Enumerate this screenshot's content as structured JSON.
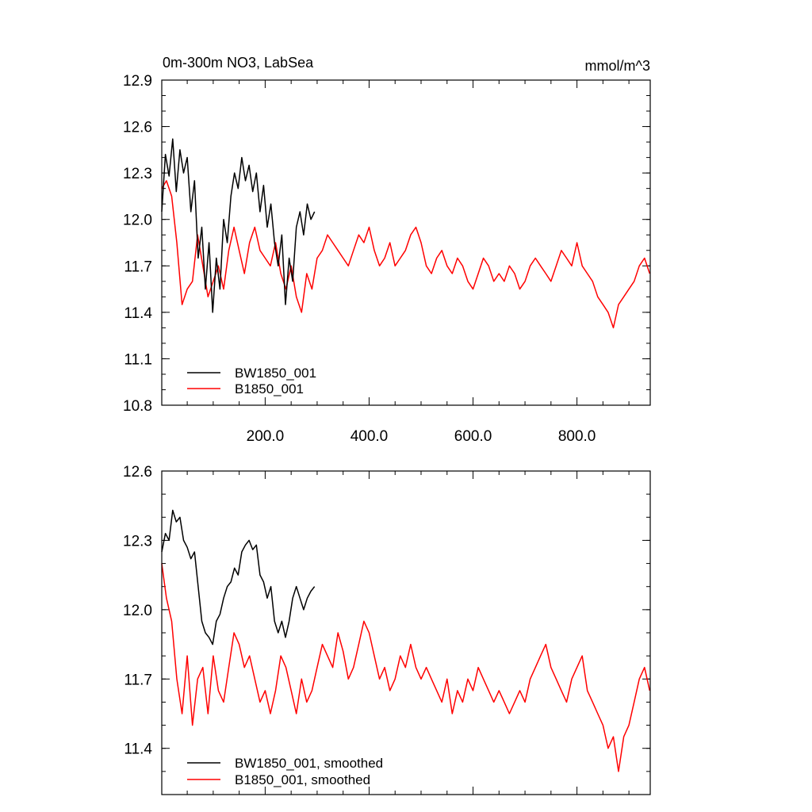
{
  "chart_data": [
    {
      "type": "line",
      "title": "0m-300m NO3, LabSea",
      "units": "mmol/m^3",
      "xlim": [
        1,
        941
      ],
      "ylim": [
        10.8,
        12.9
      ],
      "x_ticks": [
        200,
        400,
        600,
        800
      ],
      "x_tick_labels": [
        "200.0",
        "400.0",
        "600.0",
        "800.0"
      ],
      "y_ticks": [
        10.8,
        11.1,
        11.4,
        11.7,
        12.0,
        12.3,
        12.6,
        12.9
      ],
      "y_tick_labels": [
        "10.8",
        "11.1",
        "11.4",
        "11.7",
        "12.0",
        "12.3",
        "12.6",
        "12.9"
      ],
      "legend_position": "lower-left",
      "series": [
        {
          "name": "BW1850_001",
          "color": "#000000",
          "x": [
            1,
            8,
            15,
            22,
            29,
            36,
            43,
            50,
            57,
            64,
            71,
            78,
            85,
            92,
            99,
            106,
            113,
            120,
            127,
            134,
            141,
            148,
            155,
            162,
            169,
            176,
            183,
            190,
            197,
            204,
            211,
            218,
            225,
            232,
            239,
            246,
            253,
            260,
            267,
            274,
            281,
            288,
            295
          ],
          "y": [
            12.05,
            12.42,
            12.28,
            12.52,
            12.18,
            12.45,
            12.3,
            12.4,
            12.05,
            12.25,
            11.75,
            11.95,
            11.55,
            11.85,
            11.4,
            11.75,
            11.55,
            12.0,
            11.85,
            12.15,
            12.3,
            12.2,
            12.4,
            12.25,
            12.35,
            12.18,
            12.3,
            12.05,
            12.22,
            11.95,
            12.1,
            11.85,
            11.7,
            11.9,
            11.45,
            11.75,
            11.6,
            11.95,
            12.05,
            11.9,
            12.1,
            12.0,
            12.05
          ]
        },
        {
          "name": "B1850_001",
          "color": "#ff0000",
          "x": [
            1,
            10,
            20,
            30,
            40,
            50,
            60,
            70,
            80,
            90,
            100,
            110,
            120,
            130,
            140,
            150,
            160,
            170,
            180,
            190,
            200,
            210,
            220,
            230,
            240,
            250,
            260,
            270,
            280,
            290,
            300,
            310,
            320,
            330,
            340,
            350,
            360,
            370,
            380,
            390,
            400,
            410,
            420,
            430,
            440,
            450,
            460,
            470,
            480,
            490,
            500,
            510,
            520,
            530,
            540,
            550,
            560,
            570,
            580,
            590,
            600,
            610,
            620,
            630,
            640,
            650,
            660,
            670,
            680,
            690,
            700,
            710,
            720,
            730,
            740,
            750,
            760,
            770,
            780,
            790,
            800,
            810,
            820,
            830,
            840,
            850,
            860,
            870,
            880,
            890,
            900,
            910,
            920,
            930,
            940
          ],
          "y": [
            12.2,
            12.25,
            12.15,
            11.85,
            11.45,
            11.55,
            11.6,
            11.9,
            11.7,
            11.5,
            11.6,
            11.7,
            11.55,
            11.8,
            11.95,
            11.8,
            11.65,
            11.85,
            11.95,
            11.8,
            11.75,
            11.7,
            11.85,
            11.65,
            11.55,
            11.7,
            11.5,
            11.4,
            11.65,
            11.55,
            11.75,
            11.8,
            11.9,
            11.85,
            11.8,
            11.75,
            11.7,
            11.8,
            11.9,
            11.85,
            11.95,
            11.8,
            11.7,
            11.75,
            11.85,
            11.7,
            11.75,
            11.8,
            11.9,
            11.95,
            11.85,
            11.7,
            11.65,
            11.75,
            11.8,
            11.7,
            11.65,
            11.75,
            11.7,
            11.6,
            11.55,
            11.65,
            11.75,
            11.7,
            11.6,
            11.65,
            11.6,
            11.7,
            11.65,
            11.55,
            11.6,
            11.7,
            11.75,
            11.7,
            11.65,
            11.6,
            11.7,
            11.8,
            11.75,
            11.7,
            11.85,
            11.7,
            11.65,
            11.6,
            11.5,
            11.45,
            11.4,
            11.3,
            11.45,
            11.5,
            11.55,
            11.6,
            11.7,
            11.75,
            11.65
          ]
        }
      ]
    },
    {
      "type": "line",
      "title": "",
      "xlim": [
        1,
        941
      ],
      "ylim": [
        11.2,
        12.6
      ],
      "y_ticks": [
        11.4,
        11.7,
        12.0,
        12.3,
        12.6
      ],
      "y_tick_labels": [
        "11.4",
        "11.7",
        "12.0",
        "12.3",
        "12.6"
      ],
      "legend_position": "lower-left",
      "series": [
        {
          "name": "BW1850_001, smoothed",
          "color": "#000000",
          "x": [
            1,
            8,
            15,
            22,
            29,
            36,
            43,
            50,
            57,
            64,
            71,
            78,
            85,
            92,
            99,
            106,
            113,
            120,
            127,
            134,
            141,
            148,
            155,
            162,
            169,
            176,
            183,
            190,
            197,
            204,
            211,
            218,
            225,
            232,
            239,
            246,
            253,
            260,
            267,
            274,
            281,
            288,
            295
          ],
          "y": [
            12.25,
            12.33,
            12.3,
            12.43,
            12.38,
            12.4,
            12.3,
            12.27,
            12.22,
            12.25,
            12.1,
            11.95,
            11.9,
            11.88,
            11.85,
            11.95,
            11.98,
            12.05,
            12.1,
            12.12,
            12.18,
            12.15,
            12.25,
            12.28,
            12.3,
            12.26,
            12.28,
            12.15,
            12.12,
            12.05,
            12.1,
            11.95,
            11.9,
            11.95,
            11.88,
            11.95,
            12.05,
            12.1,
            12.05,
            12.0,
            12.05,
            12.08,
            12.1
          ]
        },
        {
          "name": "B1850_001, smoothed",
          "color": "#ff0000",
          "x": [
            1,
            10,
            20,
            30,
            40,
            50,
            60,
            70,
            80,
            90,
            100,
            110,
            120,
            130,
            140,
            150,
            160,
            170,
            180,
            190,
            200,
            210,
            220,
            230,
            240,
            250,
            260,
            270,
            280,
            290,
            300,
            310,
            320,
            330,
            340,
            350,
            360,
            370,
            380,
            390,
            400,
            410,
            420,
            430,
            440,
            450,
            460,
            470,
            480,
            490,
            500,
            510,
            520,
            530,
            540,
            550,
            560,
            570,
            580,
            590,
            600,
            610,
            620,
            630,
            640,
            650,
            660,
            670,
            680,
            690,
            700,
            710,
            720,
            730,
            740,
            750,
            760,
            770,
            780,
            790,
            800,
            810,
            820,
            830,
            840,
            850,
            860,
            870,
            880,
            890,
            900,
            910,
            920,
            930,
            940
          ],
          "y": [
            12.2,
            12.05,
            11.95,
            11.7,
            11.55,
            11.8,
            11.5,
            11.7,
            11.75,
            11.55,
            11.8,
            11.65,
            11.6,
            11.75,
            11.9,
            11.85,
            11.75,
            11.8,
            11.7,
            11.6,
            11.65,
            11.55,
            11.65,
            11.8,
            11.75,
            11.65,
            11.55,
            11.7,
            11.6,
            11.65,
            11.75,
            11.85,
            11.8,
            11.75,
            11.9,
            11.82,
            11.7,
            11.75,
            11.85,
            11.95,
            11.9,
            11.8,
            11.7,
            11.75,
            11.65,
            11.7,
            11.8,
            11.75,
            11.85,
            11.75,
            11.7,
            11.75,
            11.7,
            11.65,
            11.6,
            11.7,
            11.55,
            11.65,
            11.6,
            11.7,
            11.65,
            11.75,
            11.7,
            11.65,
            11.6,
            11.65,
            11.6,
            11.55,
            11.6,
            11.65,
            11.6,
            11.7,
            11.75,
            11.8,
            11.85,
            11.75,
            11.7,
            11.65,
            11.6,
            11.7,
            11.75,
            11.8,
            11.65,
            11.6,
            11.55,
            11.5,
            11.4,
            11.45,
            11.3,
            11.45,
            11.5,
            11.6,
            11.7,
            11.75,
            11.65
          ]
        }
      ]
    }
  ]
}
